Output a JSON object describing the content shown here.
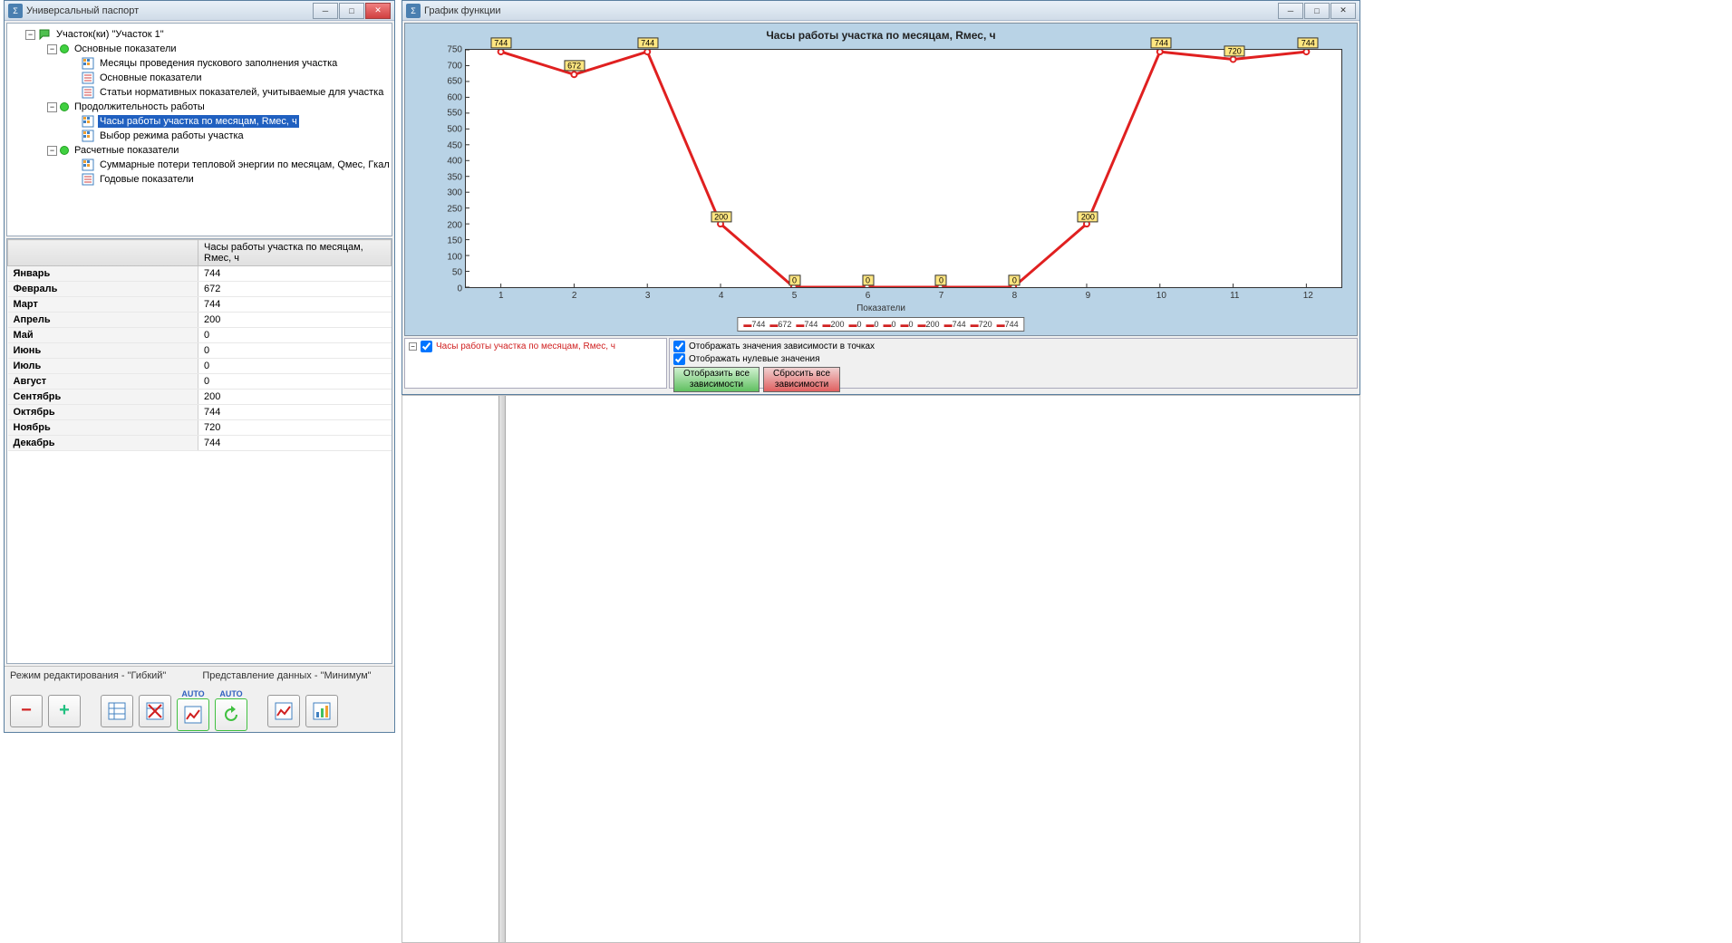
{
  "passport": {
    "title": "Универсальный паспорт",
    "tree": {
      "root": "Участок(ки) \"Участок 1\"",
      "group1": "Основные показатели",
      "g1_item1": "Месяцы проведения пускового заполнения участка",
      "g1_item2": "Основные показатели",
      "g1_item3": "Статьи нормативных показателей, учитываемые для участка",
      "group2": "Продолжительность работы",
      "g2_item1": "Часы работы участка по месяцам, Rмес, ч",
      "g2_item2": "Выбор режима работы участка",
      "group3": "Расчетные показатели",
      "g3_item1": "Суммарные потери тепловой энергии по месяцам, Qмес, Гкал",
      "g3_item2": "Годовые показатели"
    },
    "table": {
      "header_col1": "",
      "header_col2": "Часы работы участка по месяцам, Rмес, ч",
      "rows": [
        {
          "month": "Январь",
          "value": "744"
        },
        {
          "month": "Февраль",
          "value": "672"
        },
        {
          "month": "Март",
          "value": "744"
        },
        {
          "month": "Апрель",
          "value": "200"
        },
        {
          "month": "Май",
          "value": "0"
        },
        {
          "month": "Июнь",
          "value": "0"
        },
        {
          "month": "Июль",
          "value": "0"
        },
        {
          "month": "Август",
          "value": "0"
        },
        {
          "month": "Сентябрь",
          "value": "200"
        },
        {
          "month": "Октябрь",
          "value": "744"
        },
        {
          "month": "Ноябрь",
          "value": "720"
        },
        {
          "month": "Декабрь",
          "value": "744"
        }
      ]
    },
    "status": {
      "edit_mode": "Режим редактирования - \"Гибкий\"",
      "view_mode": "Представление данных - \"Минимум\""
    },
    "toolbar": {
      "auto_label": "AUTO"
    }
  },
  "graph": {
    "title": "График функции",
    "chart": {
      "title": "Часы работы участка по месяцам, Rмес, ч",
      "xaxis_title": "Показатели",
      "type": "line",
      "line_color": "#e02020",
      "line_width": 3,
      "marker_color": "#ffffff",
      "marker_border": "#e02020",
      "label_bg": "#ffe680",
      "label_border": "#333333",
      "xlim": [
        1,
        12
      ],
      "ylim": [
        0,
        750
      ],
      "ytick_step": 50,
      "x_values": [
        1,
        2,
        3,
        4,
        5,
        6,
        7,
        8,
        9,
        10,
        11,
        12
      ],
      "y_values": [
        744,
        672,
        744,
        200,
        0,
        0,
        0,
        0,
        200,
        744,
        720,
        744
      ],
      "legend_items": [
        "744",
        "672",
        "744",
        "200",
        "0",
        "0",
        "0",
        "0",
        "200",
        "744",
        "720",
        "744"
      ]
    },
    "controls": {
      "series_label": "Часы работы участка по месяцам, Rмес, ч",
      "opt1": "Отображать значения зависимости в точках",
      "opt2": "Отображать нулевые значения",
      "btn_show_all": "Отобразить все\nзависимости",
      "btn_reset_all": "Сбросить все\nзависимости"
    }
  }
}
